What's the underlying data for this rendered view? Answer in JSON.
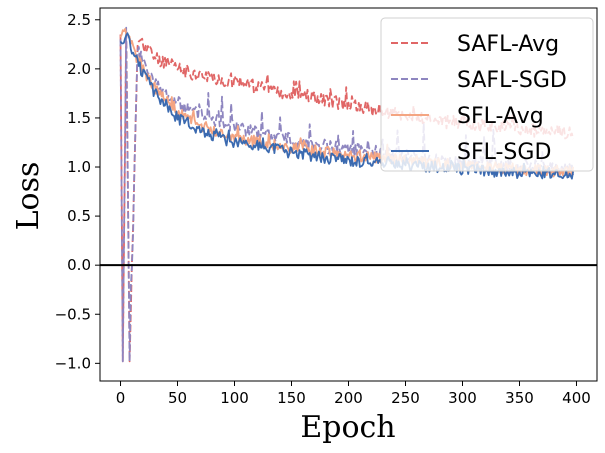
{
  "chart_data": {
    "type": "line",
    "xlabel": "Epoch",
    "ylabel": "Loss",
    "xlim": [
      -18,
      418
    ],
    "ylim": [
      -1.18,
      2.62
    ],
    "xticks": [
      0,
      50,
      100,
      150,
      200,
      250,
      300,
      350,
      400
    ],
    "yticks": [
      -1.0,
      -0.5,
      0.0,
      0.5,
      1.0,
      1.5,
      2.0,
      2.5
    ],
    "xtick_labels": [
      "0",
      "50",
      "100",
      "150",
      "200",
      "250",
      "300",
      "350",
      "400"
    ],
    "ytick_labels": [
      "−1.0",
      "−0.5",
      "0.0",
      "0.5",
      "1.0",
      "1.5",
      "2.0",
      "2.5"
    ],
    "hline_y": 0.0,
    "grid": false,
    "legend_position": "top-right",
    "x_start": 0,
    "x_end": 397,
    "series": [
      {
        "name": "SAFL-Avg",
        "color": "#e06666",
        "dash": "dashed",
        "x": [
          0,
          2,
          5,
          8,
          15,
          30,
          50,
          75,
          100,
          125,
          150,
          175,
          200,
          225,
          250,
          275,
          300,
          325,
          350,
          375,
          397
        ],
        "values": [
          2.35,
          -0.98,
          2.4,
          -0.98,
          2.3,
          2.12,
          2.0,
          1.92,
          1.87,
          1.8,
          1.75,
          1.7,
          1.63,
          1.58,
          1.52,
          1.48,
          1.44,
          1.42,
          1.38,
          1.36,
          1.35
        ]
      },
      {
        "name": "SAFL-SGD",
        "color": "#8e86c0",
        "dash": "dashed",
        "x": [
          0,
          2,
          5,
          8,
          15,
          30,
          50,
          75,
          100,
          125,
          150,
          175,
          200,
          225,
          250,
          275,
          300,
          325,
          350,
          375,
          397
        ],
        "values": [
          2.3,
          -0.98,
          2.42,
          -0.98,
          2.2,
          1.85,
          1.65,
          1.5,
          1.42,
          1.33,
          1.28,
          1.22,
          1.18,
          1.15,
          1.12,
          1.08,
          1.05,
          1.03,
          1.01,
          1.0,
          0.98
        ]
      },
      {
        "name": "SFL-Avg",
        "color": "#f4a582",
        "dash": "solid",
        "x": [
          0,
          5,
          15,
          30,
          50,
          75,
          100,
          125,
          150,
          175,
          200,
          225,
          250,
          275,
          300,
          325,
          350,
          375,
          397
        ],
        "values": [
          2.32,
          2.36,
          2.1,
          1.8,
          1.55,
          1.4,
          1.3,
          1.25,
          1.2,
          1.16,
          1.12,
          1.1,
          1.07,
          1.04,
          1.02,
          1.0,
          0.98,
          0.96,
          0.95
        ]
      },
      {
        "name": "SFL-SGD",
        "color": "#3b6ab0",
        "dash": "solid",
        "x": [
          0,
          5,
          15,
          30,
          50,
          75,
          100,
          125,
          150,
          175,
          200,
          225,
          250,
          275,
          300,
          325,
          350,
          375,
          397
        ],
        "values": [
          2.28,
          2.34,
          2.05,
          1.75,
          1.5,
          1.35,
          1.25,
          1.2,
          1.15,
          1.1,
          1.07,
          1.04,
          1.02,
          1.0,
          0.98,
          0.96,
          0.94,
          0.92,
          0.9
        ]
      }
    ]
  }
}
